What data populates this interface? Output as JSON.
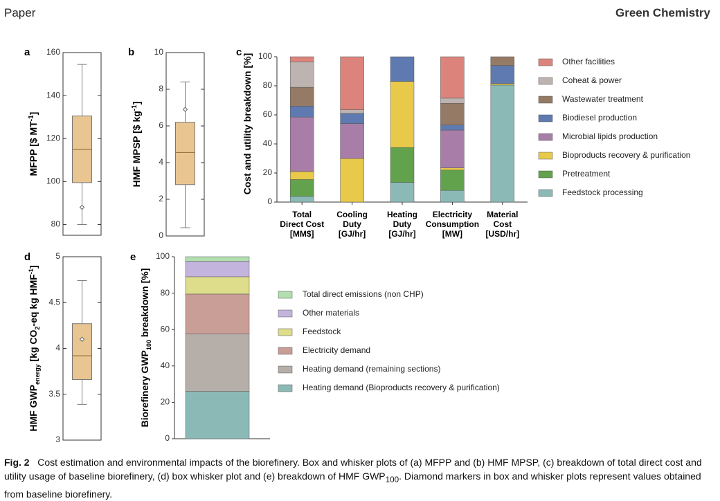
{
  "header": {
    "left": "Paper",
    "right": "Green Chemistry"
  },
  "caption": {
    "label": "Fig. 2",
    "text_before_sub": "Cost estimation and environmental impacts of the biorefinery. Box and whisker plots of (a) MFPP and (b) HMF MPSP, (c) breakdown of total direct cost and utility usage of baseline biorefinery, (d) box whisker plot and (e) breakdown of HMF GWP",
    "sub": "100",
    "text_after_sub": ". Diamond markers in box and whisker plots represent values obtained from baseline biorefinery."
  },
  "colors": {
    "box_fill": "#e9c592",
    "box_edge": "#777777",
    "median_line": "#9a7444",
    "axis": "#333333",
    "feedstock_processing": "#8bbab6",
    "pretreatment": "#63a24c",
    "bioproducts_recovery": "#e8c94a",
    "microbial_lipids": "#a87ea8",
    "biodiesel": "#5f7ab0",
    "wastewater": "#957a65",
    "coheat_power": "#bdb4b1",
    "other_facilities": "#dc847c",
    "hd_bioproducts": "#8bbab6",
    "hd_remaining": "#b6aea8",
    "electricity_demand": "#c99e97",
    "feedstock": "#dddd8c",
    "other_materials": "#c3b4dd",
    "total_direct_emissions": "#b2dfae"
  },
  "chart_data": [
    {
      "panel": "a",
      "type": "box",
      "ylabel": "MFPP [$ MT^-1]",
      "ylim": [
        75,
        160
      ],
      "yticks": [
        80,
        100,
        120,
        140,
        160
      ],
      "whisker_low": 80,
      "q1": 99.5,
      "median": 115,
      "q3": 130.5,
      "whisker_high": 154.5,
      "baseline": 88
    },
    {
      "panel": "b",
      "type": "box",
      "ylabel": "HMF MPSP [$ kg^-1]",
      "ylim": [
        0,
        10
      ],
      "yticks": [
        0,
        2,
        4,
        6,
        8,
        10
      ],
      "whisker_low": 0.45,
      "q1": 2.8,
      "median": 4.55,
      "q3": 6.2,
      "whisker_high": 8.4,
      "baseline": 6.9
    },
    {
      "panel": "c",
      "type": "stacked_bar",
      "ylabel": "Cost and utility breakdown [%]",
      "ylim": [
        0,
        100
      ],
      "yticks": [
        0,
        20,
        40,
        60,
        80,
        100
      ],
      "categories": [
        [
          "Total",
          "Direct Cost",
          "[MM$]"
        ],
        [
          "Cooling",
          "Duty",
          "[GJ/hr]"
        ],
        [
          "Heating",
          "Duty",
          "[GJ/hr]"
        ],
        [
          "Electricity",
          "Consumption",
          "[MW]"
        ],
        [
          "Material",
          "Cost",
          "[USD/hr]"
        ]
      ],
      "series": [
        {
          "name": "Feedstock processing",
          "color_key": "feedstock_processing",
          "values": [
            4,
            0,
            13.5,
            8,
            80.5
          ]
        },
        {
          "name": "Pretreatment",
          "color_key": "pretreatment",
          "values": [
            11.5,
            0,
            24,
            14,
            0
          ]
        },
        {
          "name": "Bioproducts recovery & purification",
          "color_key": "bioproducts_recovery",
          "values": [
            5.5,
            30,
            45.5,
            1.5,
            1
          ]
        },
        {
          "name": "Microbial lipids production",
          "color_key": "microbial_lipids",
          "values": [
            37.5,
            24,
            0,
            26,
            0
          ]
        },
        {
          "name": "Biodiesel production",
          "color_key": "biodiesel",
          "values": [
            7.5,
            7,
            17,
            3.5,
            12.5
          ]
        },
        {
          "name": "Wastewater treatment",
          "color_key": "wastewater",
          "values": [
            13,
            0,
            0,
            15,
            6
          ]
        },
        {
          "name": "Coheat & power",
          "color_key": "coheat_power",
          "values": [
            17.5,
            2.5,
            0,
            3.5,
            0
          ]
        },
        {
          "name": "Other facilities",
          "color_key": "other_facilities",
          "values": [
            3.5,
            36.5,
            0,
            28.5,
            0
          ]
        }
      ]
    },
    {
      "panel": "d",
      "type": "box",
      "ylabel_main": "HMF GWP",
      "ylabel_sub": "energy",
      "ylabel_rest": " [kg CO",
      "ylabel_sub2": "2",
      "ylabel_end": "-eq kg HMF",
      "ylabel_sup": "-1",
      "ylabel_close": "]",
      "ylim": [
        3,
        5
      ],
      "yticks": [
        3,
        3.5,
        4,
        4.5,
        5
      ],
      "ytick_labels": [
        "3",
        "3.5",
        "4",
        "4.5",
        "5"
      ],
      "whisker_low": 3.39,
      "q1": 3.66,
      "median": 3.92,
      "q3": 4.27,
      "whisker_high": 4.74,
      "baseline": 4.1
    },
    {
      "panel": "e",
      "type": "stacked_bar",
      "ylabel_main": "Biorefinery GWP",
      "ylabel_sub": "100",
      "ylabel_rest": " breakdown [%]",
      "ylim": [
        0,
        100
      ],
      "yticks": [
        0,
        20,
        40,
        60,
        80,
        100
      ],
      "series": [
        {
          "name": "Heating demand (Bioproducts recovery & purification)",
          "color_key": "hd_bioproducts",
          "value": 26
        },
        {
          "name": "Heating demand (remaining sections)",
          "color_key": "hd_remaining",
          "value": 31.5
        },
        {
          "name": "Electricity demand",
          "color_key": "electricity_demand",
          "value": 22
        },
        {
          "name": "Feedstock",
          "color_key": "feedstock",
          "value": 9.5
        },
        {
          "name": "Other materials",
          "color_key": "other_materials",
          "value": 8.5
        },
        {
          "name": "Total direct emissions (non CHP)",
          "color_key": "total_direct_emissions",
          "value": 2.5
        }
      ]
    }
  ],
  "panel_labels": [
    "a",
    "b",
    "c",
    "d",
    "e"
  ]
}
